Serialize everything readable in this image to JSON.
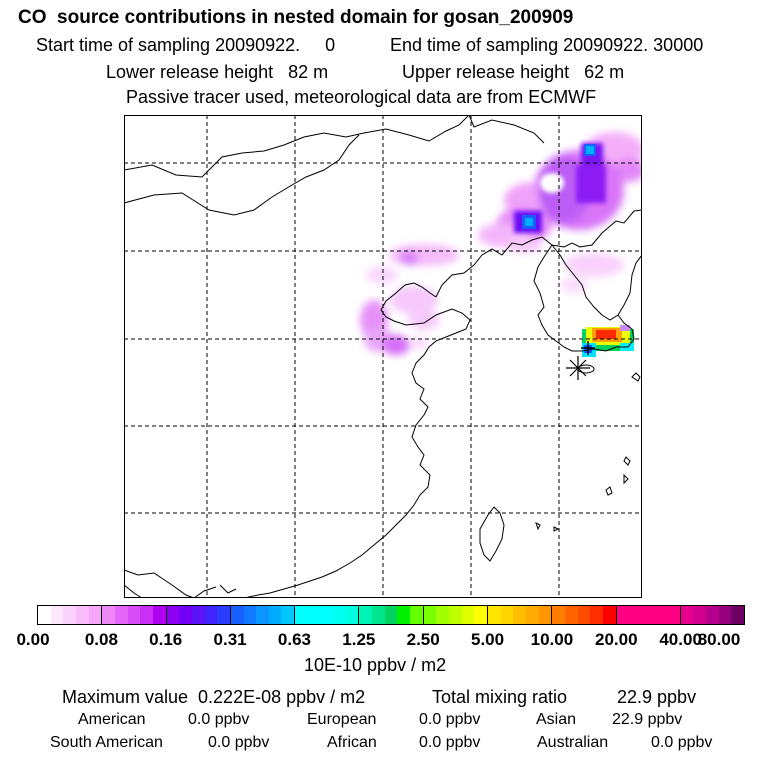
{
  "header": {
    "title": "CO  source contributions in nested domain for gosan_200909",
    "start": "Start time of sampling 20090922.     0",
    "end": "End time of sampling 20090922. 30000",
    "lower": "Lower release height   82 m",
    "upper": "Upper release height   62 m",
    "tracer": "Passive tracer used, meteorological data are from ECMWF"
  },
  "map": {
    "description_name": "CO source contribution map",
    "receptor_marker": "gosan-receptor-asterisk"
  },
  "colorbar": {
    "tick_labels": [
      "0.00",
      "0.08",
      "0.16",
      "0.31",
      "0.63",
      "1.25",
      "2.50",
      "5.00",
      "10.00",
      "20.00",
      "40.00",
      "80.00"
    ],
    "colors": [
      [
        "#ffffff",
        "#fde8fe",
        "#fbd3fd",
        "#f8bdfb",
        "#f5a8f9"
      ],
      [
        "#ee88f8",
        "#e266f7",
        "#d84df7",
        "#c930f6",
        "#b000f2"
      ],
      [
        "#8c00f2",
        "#7100f5",
        "#5a14f7",
        "#3f25fb",
        "#2b3cfd"
      ],
      [
        "#1760ff",
        "#0f7aff",
        "#0a95ff",
        "#00aaff",
        "#00c6ff"
      ],
      [
        "#00ffff",
        "#00ffff",
        "#00ffff",
        "#00fff0",
        "#00ffe0"
      ],
      [
        "#00f5b4",
        "#00e68c",
        "#00d25f",
        "#00f000",
        "#66ff00"
      ],
      [
        "#79ff00",
        "#a0ff00",
        "#c0ff00",
        "#dfff00",
        "#ffff00"
      ],
      [
        "#ffe600",
        "#ffd500",
        "#ffbf00",
        "#ffaa00",
        "#ff9600"
      ],
      [
        "#ff7d00",
        "#ff6400",
        "#ff4b00",
        "#ff2d00",
        "#ff0000"
      ],
      [
        "#ff0082",
        "#ff0082",
        "#ff0082",
        "#ff0082",
        "#ff0082"
      ],
      [
        "#e6008c",
        "#d2008c",
        "#b4008c",
        "#96007d",
        "#6e0064"
      ]
    ],
    "units": "10E-10 ppbv / m2"
  },
  "summary": {
    "max_label": "Maximum value  0.222E-08 ppbv / m2",
    "total_label": "Total mixing ratio",
    "total_value": "22.9 ppbv",
    "regions": [
      {
        "name": "American",
        "value": "0.0 ppbv"
      },
      {
        "name": "European",
        "value": "0.0 ppbv"
      },
      {
        "name": "Asian",
        "value": "22.9 ppbv"
      },
      {
        "name": "South American",
        "value": "0.0 ppbv"
      },
      {
        "name": "African",
        "value": "0.0 ppbv"
      },
      {
        "name": "Australian",
        "value": "0.0 ppbv"
      }
    ]
  }
}
